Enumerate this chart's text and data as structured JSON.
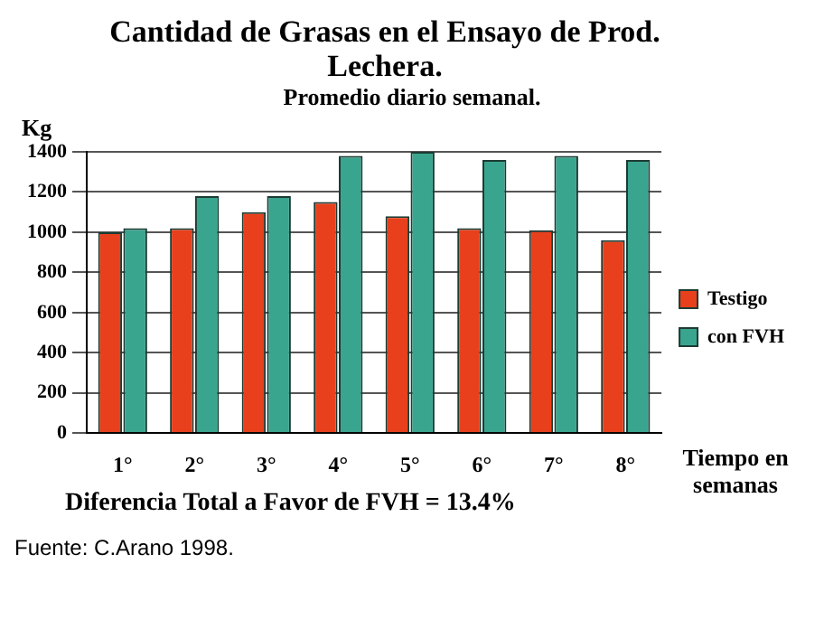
{
  "chart_data": {
    "type": "bar",
    "title": "Cantidad de Grasas en el Ensayo de Prod. Lechera.",
    "subtitle": "Promedio diario semanal.",
    "ylabel": "Kg",
    "xlabel": "Tiempo en semanas",
    "categories": [
      "1°",
      "2°",
      "3°",
      "4°",
      "5°",
      "6°",
      "7°",
      "8°"
    ],
    "series": [
      {
        "name": "Testigo",
        "color": "#e8401c",
        "values": [
          1000,
          1020,
          1100,
          1150,
          1080,
          1020,
          1010,
          960
        ]
      },
      {
        "name": "con FVH",
        "color": "#3aa58f",
        "values": [
          1020,
          1180,
          1180,
          1380,
          1400,
          1360,
          1380,
          1360
        ]
      }
    ],
    "ylim": [
      0,
      1400
    ],
    "yticks": [
      0,
      200,
      400,
      600,
      800,
      1000,
      1200,
      1400
    ],
    "grid": "y",
    "legend": "right",
    "annotations": [
      "Diferencia Total a Favor de FVH = 13.4%",
      "Fuente: C.Arano 1998."
    ]
  }
}
